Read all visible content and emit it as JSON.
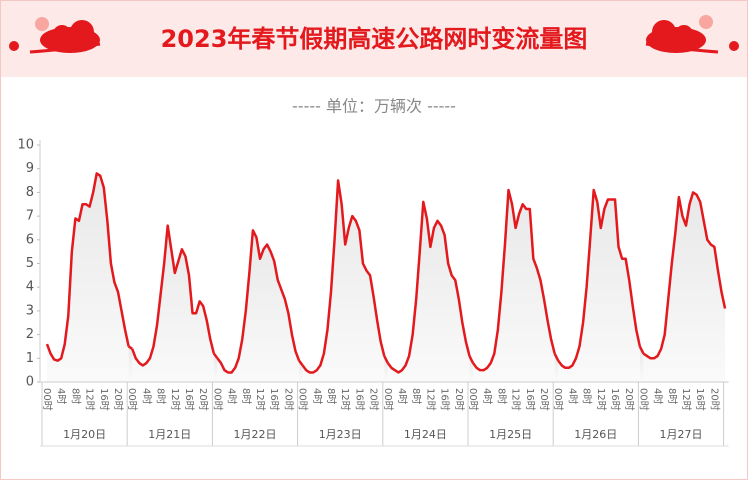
{
  "chart_data": {
    "type": "line",
    "title": "2023年春节假期高速公路网时变流量图",
    "subtitle": "----- 单位：万辆次 -----",
    "color": "#e3191d",
    "ylim": [
      0,
      10
    ],
    "yticks": [
      0,
      1,
      2,
      3,
      4,
      5,
      6,
      7,
      8,
      9,
      10
    ],
    "categories": [
      "00时",
      null,
      null,
      null,
      "4时",
      null,
      null,
      null,
      "8时",
      null,
      null,
      null,
      "12时",
      null,
      null,
      null,
      "16时",
      null,
      null,
      null,
      "20时",
      null,
      null,
      null
    ],
    "days": [
      {
        "label": "1月20日",
        "values": [
          1.6,
          1.2,
          0.95,
          0.9,
          1.0,
          1.6,
          2.8,
          5.5,
          6.9,
          6.8,
          7.5,
          7.5,
          7.4,
          8.0,
          8.8,
          8.7,
          8.2,
          6.8,
          5.0,
          4.2,
          3.8,
          3.0,
          2.2,
          1.5
        ]
      },
      {
        "label": "1月21日",
        "values": [
          1.4,
          1.0,
          0.8,
          0.7,
          0.8,
          1.0,
          1.5,
          2.4,
          3.7,
          5.0,
          6.6,
          5.6,
          4.6,
          5.1,
          5.6,
          5.3,
          4.5,
          2.9,
          2.9,
          3.4,
          3.2,
          2.6,
          1.8,
          1.2
        ]
      },
      {
        "label": "1月22日",
        "values": [
          1.0,
          0.8,
          0.5,
          0.4,
          0.4,
          0.6,
          1.0,
          1.8,
          3.0,
          4.6,
          6.4,
          6.1,
          5.2,
          5.6,
          5.8,
          5.5,
          5.1,
          4.3,
          3.9,
          3.5,
          2.9,
          2.0,
          1.3,
          0.9
        ]
      },
      {
        "label": "1月23日",
        "values": [
          0.7,
          0.5,
          0.4,
          0.4,
          0.5,
          0.7,
          1.2,
          2.2,
          3.8,
          6.0,
          8.5,
          7.5,
          5.8,
          6.5,
          7.0,
          6.8,
          6.4,
          5.0,
          4.7,
          4.5,
          3.6,
          2.6,
          1.7,
          1.1
        ]
      },
      {
        "label": "1月24日",
        "values": [
          0.8,
          0.6,
          0.5,
          0.4,
          0.5,
          0.7,
          1.1,
          2.0,
          3.5,
          5.5,
          7.6,
          6.9,
          5.7,
          6.5,
          6.8,
          6.6,
          6.2,
          5.0,
          4.5,
          4.3,
          3.5,
          2.5,
          1.7,
          1.1
        ]
      },
      {
        "label": "1月25日",
        "values": [
          0.8,
          0.6,
          0.5,
          0.5,
          0.6,
          0.8,
          1.2,
          2.2,
          3.8,
          5.8,
          8.1,
          7.5,
          6.5,
          7.1,
          7.5,
          7.3,
          7.3,
          5.2,
          4.8,
          4.3,
          3.5,
          2.6,
          1.8,
          1.2
        ]
      },
      {
        "label": "1月26日",
        "values": [
          0.9,
          0.7,
          0.6,
          0.6,
          0.7,
          1.0,
          1.5,
          2.5,
          4.0,
          6.0,
          8.1,
          7.6,
          6.5,
          7.3,
          7.7,
          7.7,
          7.7,
          5.7,
          5.2,
          5.2,
          4.3,
          3.2,
          2.2,
          1.5
        ]
      },
      {
        "label": "1月27日",
        "values": [
          1.2,
          1.1,
          1.0,
          1.0,
          1.1,
          1.4,
          2.0,
          3.5,
          5.0,
          6.3,
          7.8,
          7.0,
          6.6,
          7.5,
          8.0,
          7.9,
          7.6,
          6.8,
          6.0,
          5.8,
          5.7,
          4.7,
          3.8,
          3.1
        ]
      }
    ]
  }
}
